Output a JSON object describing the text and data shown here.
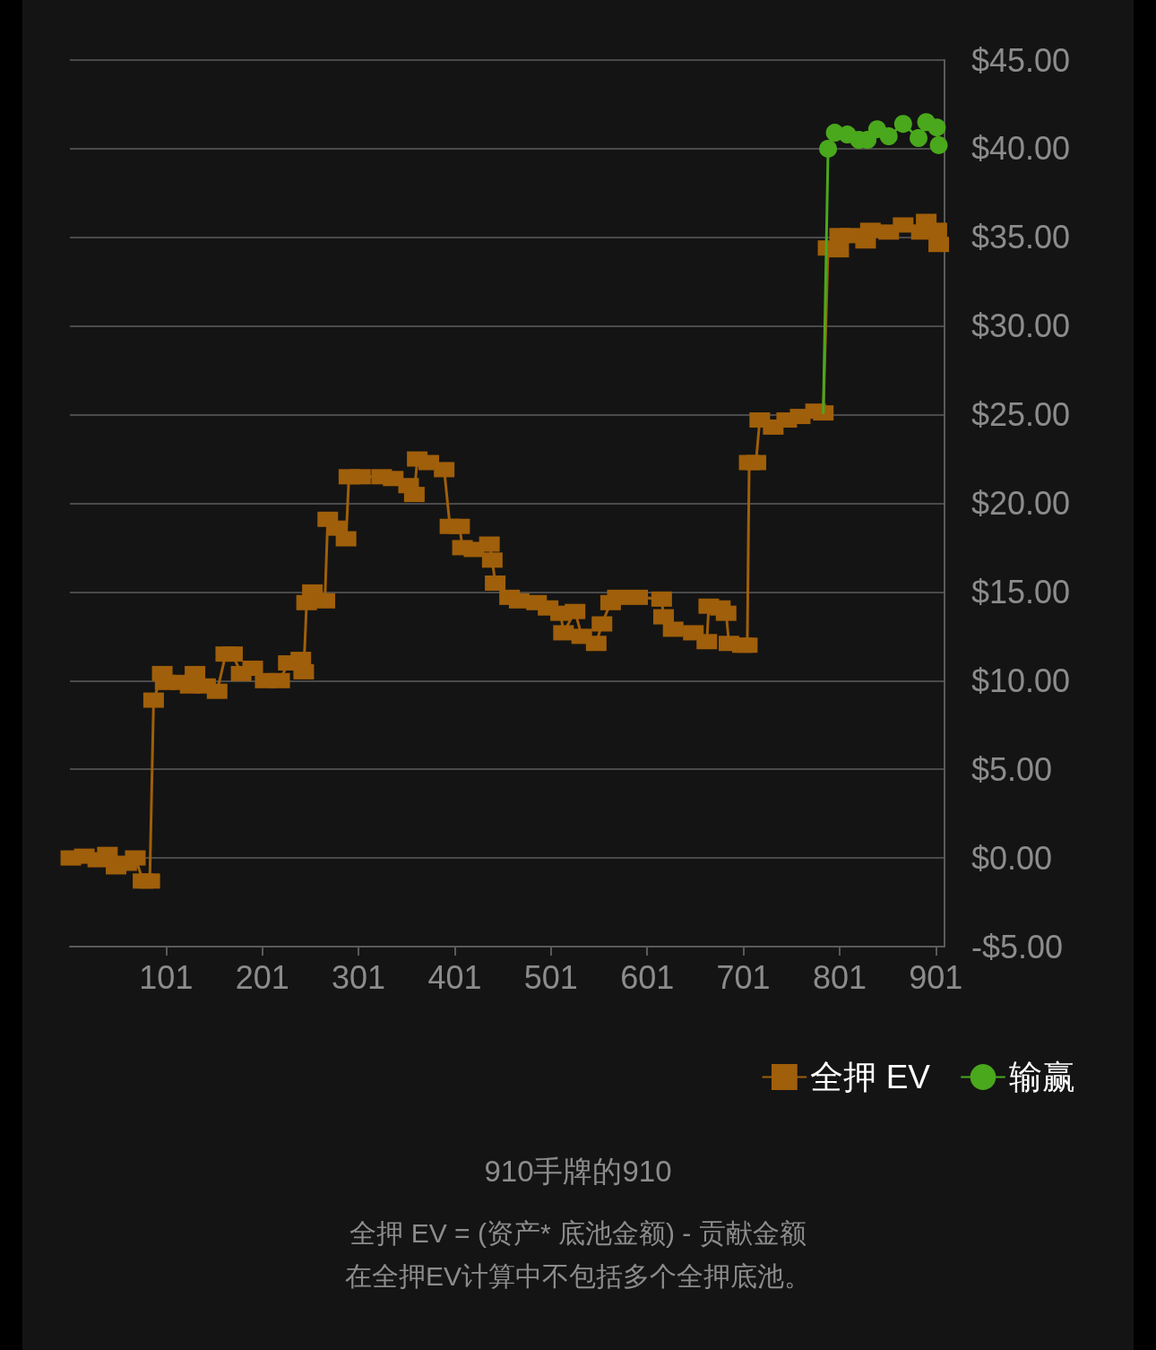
{
  "chart_data": {
    "type": "line",
    "title": "910手牌的910",
    "annotations": [
      "全押 EV = (资产* 底池金额) - 贡献金额",
      "在全押EV计算中不包括多个全押底池。"
    ],
    "series": [
      {
        "name": "全押 EV",
        "color": "#a05f0a",
        "marker": "square",
        "x": [
          2,
          16,
          30,
          40,
          49,
          60,
          69,
          77,
          84,
          88,
          97,
          100,
          117,
          126,
          131,
          142,
          154,
          163,
          170,
          179,
          191,
          204,
          219,
          228,
          241,
          244,
          247,
          253,
          266,
          269,
          279,
          288,
          291,
          303,
          325,
          337,
          353,
          359,
          362,
          374,
          390,
          396,
          406,
          409,
          421,
          437,
          440,
          443,
          458,
          468,
          486,
          498,
          511,
          514,
          526,
          533,
          548,
          554,
          563,
          570,
          591,
          616,
          618,
          628,
          649,
          663,
          665,
          677,
          683,
          686,
          700,
          705,
          707,
          714,
          718,
          732,
          746,
          760,
          776,
          784,
          789,
          800,
          801,
          812,
          828,
          833,
          852,
          867,
          886,
          891,
          902,
          904
        ],
        "values": [
          0.0,
          0.1,
          -0.1,
          0.2,
          -0.5,
          -0.3,
          0.0,
          -1.3,
          -1.3,
          8.9,
          10.4,
          9.9,
          9.9,
          9.7,
          10.4,
          9.7,
          9.4,
          11.5,
          11.5,
          10.4,
          10.7,
          10.0,
          10.0,
          11.0,
          11.2,
          10.5,
          14.4,
          15.0,
          14.5,
          19.1,
          18.6,
          18.0,
          21.5,
          21.5,
          21.5,
          21.4,
          21.0,
          20.5,
          22.5,
          22.3,
          21.9,
          18.7,
          18.7,
          17.5,
          17.4,
          17.7,
          16.8,
          15.5,
          14.7,
          14.5,
          14.4,
          14.1,
          13.8,
          12.7,
          13.9,
          12.5,
          12.1,
          13.2,
          14.4,
          14.7,
          14.7,
          14.6,
          13.6,
          12.9,
          12.7,
          12.2,
          14.2,
          14.1,
          13.8,
          12.1,
          12.0,
          12.0,
          22.3,
          22.3,
          24.7,
          24.3,
          24.7,
          24.9,
          25.2,
          25.1,
          34.4,
          34.3,
          35.1,
          35.1,
          34.8,
          35.4,
          35.3,
          35.7,
          35.3,
          35.9,
          35.4,
          34.6
        ]
      },
      {
        "name": "输赢",
        "color": "#4aa81c",
        "marker": "circle",
        "x": [
          784,
          789,
          796,
          809,
          821,
          830,
          840,
          852,
          867,
          883,
          891,
          902,
          904
        ],
        "values": [
          25.1,
          40.0,
          40.9,
          40.8,
          40.5,
          40.5,
          41.1,
          40.7,
          41.4,
          40.6,
          41.5,
          41.2,
          40.2
        ]
      }
    ],
    "xlim": [
      1,
      910
    ],
    "xticks": [
      101,
      201,
      301,
      401,
      501,
      601,
      701,
      801,
      901
    ],
    "ylim": [
      -5,
      45
    ],
    "yticks": [
      {
        "value": -5,
        "label": "-$5.00"
      },
      {
        "value": 0,
        "label": "$0.00"
      },
      {
        "value": 5,
        "label": "$5.00"
      },
      {
        "value": 10,
        "label": "$10.00"
      },
      {
        "value": 15,
        "label": "$15.00"
      },
      {
        "value": 20,
        "label": "$20.00"
      },
      {
        "value": 25,
        "label": "$25.00"
      },
      {
        "value": 30,
        "label": "$30.00"
      },
      {
        "value": 35,
        "label": "$35.00"
      },
      {
        "value": 40,
        "label": "$40.00"
      },
      {
        "value": 45,
        "label": "$45.00"
      }
    ],
    "grid": "y",
    "legend": "bottom right"
  }
}
